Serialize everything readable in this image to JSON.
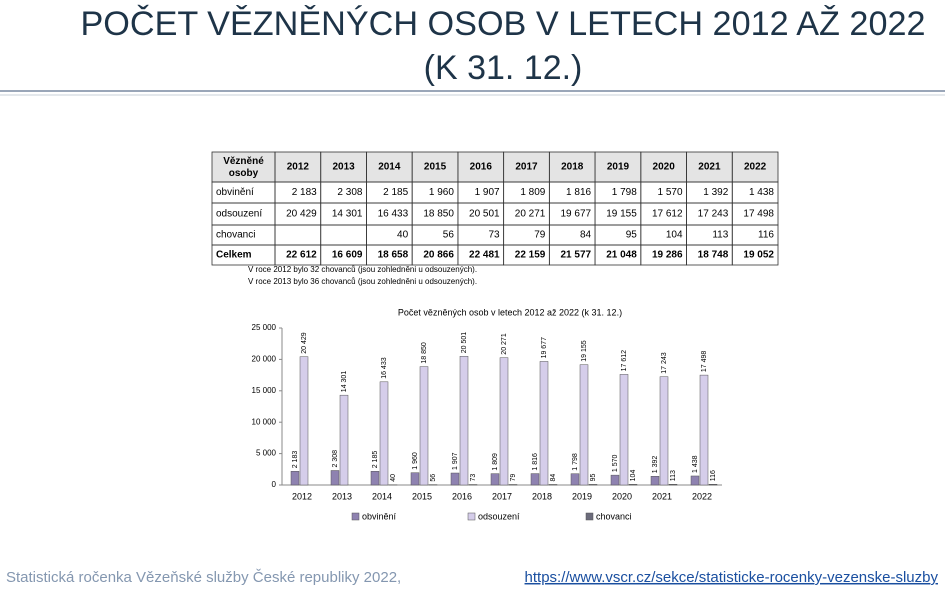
{
  "header": {
    "title_line1": "POČET VĚZNĚNÝCH OSOB V LETECH 2012 AŽ 2022",
    "title_line2": "(K 31. 12.)"
  },
  "table": {
    "header": [
      "Vězněné osoby",
      "2012",
      "2013",
      "2014",
      "2015",
      "2016",
      "2017",
      "2018",
      "2019",
      "2020",
      "2021",
      "2022"
    ],
    "rows": [
      [
        "obvinění",
        "2 183",
        "2 308",
        "2 185",
        "1 960",
        "1 907",
        "1 809",
        "1 816",
        "1 798",
        "1 570",
        "1 392",
        "1 438"
      ],
      [
        "odsouzení",
        "20 429",
        "14 301",
        "16 433",
        "18 850",
        "20 501",
        "20 271",
        "19 677",
        "19 155",
        "17 612",
        "17 243",
        "17 498"
      ],
      [
        "chovanci",
        null,
        null,
        "40",
        "56",
        "73",
        "79",
        "84",
        "95",
        "104",
        "113",
        "116"
      ],
      [
        "Celkem",
        "22 612",
        "16 609",
        "18 658",
        "20 866",
        "22 481",
        "22 159",
        "21 577",
        "21 048",
        "19 286",
        "18 748",
        "19 052"
      ]
    ]
  },
  "notes": [
    "V roce 2012 bylo 32 chovanců (jsou zohledněni u odsouzených).",
    "V roce 2013 bylo 36 chovanců (jsou zohledněni u odsouzených)."
  ],
  "chart_data": {
    "type": "bar",
    "title": "Počet vězněných osob v letech 2012 až 2022 (k 31. 12.)",
    "categories": [
      "2012",
      "2013",
      "2014",
      "2015",
      "2016",
      "2017",
      "2018",
      "2019",
      "2020",
      "2021",
      "2022"
    ],
    "series": [
      {
        "name": "obvinění",
        "color": "#8e82b0",
        "values": [
          2183,
          2308,
          2185,
          1960,
          1907,
          1809,
          1816,
          1798,
          1570,
          1392,
          1438
        ],
        "value_labels": [
          "2 183",
          "2 308",
          "2 185",
          "1 960",
          "1 907",
          "1 809",
          "1 816",
          "1 798",
          "1 570",
          "1 392",
          "1 438"
        ]
      },
      {
        "name": "odsouzení",
        "color": "#d5cdea",
        "values": [
          20429,
          14301,
          16433,
          18850,
          20501,
          20271,
          19677,
          19155,
          17612,
          17243,
          17498
        ],
        "value_labels": [
          "20 429",
          "14 301",
          "16 433",
          "18 850",
          "20 501",
          "20 271",
          "19 677",
          "19 155",
          "17 612",
          "17 243",
          "17 498"
        ]
      },
      {
        "name": "chovanci",
        "color": "#6b6b7b",
        "values": [
          null,
          null,
          40,
          56,
          73,
          79,
          84,
          95,
          104,
          113,
          116
        ]
      }
    ],
    "ylim": [
      0,
      25000
    ],
    "yticks": [
      0,
      {
        "value": 5000,
        "label": "5 000"
      },
      {
        "value": 10000,
        "label": "10 000"
      },
      {
        "value": 15000,
        "label": "15 000"
      },
      {
        "value": 20000,
        "label": "20 000"
      },
      {
        "value": 25000,
        "label": "25 000"
      }
    ],
    "legend": "bottom"
  },
  "footer": {
    "text": "Statistická ročenka Vězeňské služby České republiky 2022,",
    "link": "https://www.vscr.cz/sekce/statisticke-rocenky-vezenske-sluzby"
  }
}
